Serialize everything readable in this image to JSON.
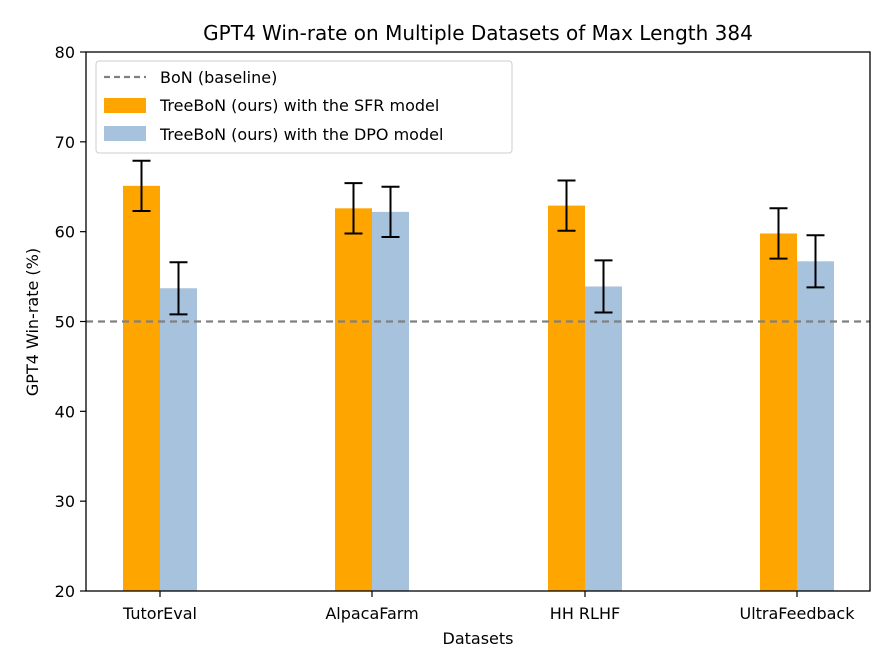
{
  "chart_data": {
    "type": "bar",
    "title": "GPT4 Win-rate on Multiple Datasets of Max Length 384",
    "xlabel": "Datasets",
    "ylabel": "GPT4 Win-rate (%)",
    "ylim": [
      20,
      80
    ],
    "yticks": [
      20,
      30,
      40,
      50,
      60,
      70,
      80
    ],
    "categories": [
      "TutorEval",
      "AlpacaFarm",
      "HH RLHF",
      "UltraFeedback"
    ],
    "series": [
      {
        "name": "TreeBoN (ours) with the SFR model",
        "color": "#FFA500",
        "values": [
          65.1,
          62.6,
          62.9,
          59.8
        ],
        "errors": [
          2.8,
          2.8,
          2.8,
          2.8
        ]
      },
      {
        "name": "TreeBoN (ours) with the DPO model",
        "color": "#A6C2DD",
        "values": [
          53.7,
          62.2,
          53.9,
          56.7
        ],
        "errors": [
          2.9,
          2.8,
          2.9,
          2.9
        ]
      }
    ],
    "baseline": {
      "name": "BoN (baseline)",
      "value": 50,
      "color": "#808080"
    },
    "legend_position": "top-left"
  }
}
